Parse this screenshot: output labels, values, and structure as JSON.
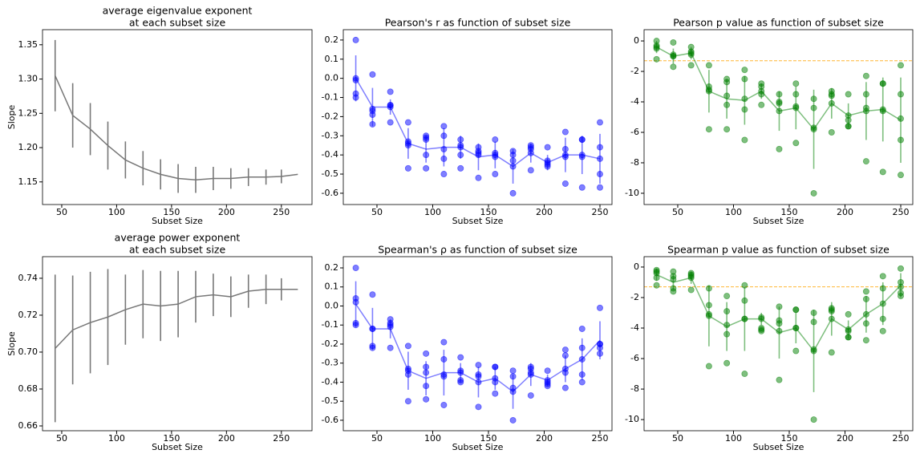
{
  "chart_data": [
    {
      "type": "errorbar",
      "title": [
        "average eigenvalue exponent",
        "at each subset size"
      ],
      "xlabel": "Subset Size",
      "ylabel": "Slope",
      "x": [
        44,
        60,
        76,
        92,
        108,
        124,
        140,
        156,
        172,
        188,
        204,
        220,
        236,
        250,
        265
      ],
      "values": [
        1.305,
        1.247,
        1.227,
        1.203,
        1.182,
        1.17,
        1.161,
        1.155,
        1.153,
        1.155,
        1.155,
        1.157,
        1.157,
        1.158,
        1.161
      ],
      "errors": [
        0.052,
        0.047,
        0.038,
        0.035,
        0.027,
        0.025,
        0.022,
        0.021,
        0.019,
        0.017,
        0.015,
        0.013,
        0.011,
        0.01,
        null
      ],
      "color": "#777777",
      "xlim": [
        32.5,
        277.9
      ],
      "ylim": [
        1.117,
        1.372
      ],
      "xticks": [
        50,
        100,
        150,
        200,
        250
      ],
      "yticks": [
        1.15,
        {
          "value": 1.2,
          "label": "1.20"
        },
        1.25,
        {
          "value": 1.3,
          "label": "1.30"
        },
        1.35
      ]
    },
    {
      "type": "errorbar-scatter",
      "title": [
        "Pearson's r as function of subset size"
      ],
      "xlabel": "Subset Size",
      "x": [
        31,
        46,
        62,
        78,
        94,
        110,
        125,
        141,
        156,
        172,
        188,
        203,
        219,
        234,
        250
      ],
      "values": [
        0.0,
        -0.15,
        -0.15,
        -0.34,
        -0.37,
        -0.36,
        -0.36,
        -0.41,
        -0.4,
        -0.46,
        -0.39,
        -0.44,
        -0.4,
        -0.4,
        -0.42
      ],
      "errors": [
        0.12,
        0.1,
        0.04,
        0.08,
        0.07,
        0.1,
        0.06,
        0.07,
        0.07,
        0.09,
        0.05,
        0.04,
        0.09,
        0.1,
        0.13
      ],
      "samples": [
        [
          0.2,
          -0.01,
          0.0,
          -0.08,
          -0.1
        ],
        [
          0.02,
          -0.16,
          -0.17,
          -0.24,
          -0.19
        ],
        [
          -0.07,
          -0.14,
          -0.15,
          -0.23,
          -0.14
        ],
        [
          -0.23,
          -0.33,
          -0.35,
          -0.47,
          -0.34
        ],
        [
          -0.3,
          -0.32,
          -0.4,
          -0.47,
          -0.31
        ],
        [
          -0.25,
          -0.3,
          -0.42,
          -0.5,
          -0.37
        ],
        [
          -0.32,
          -0.36,
          -0.4,
          -0.47,
          -0.35
        ],
        [
          -0.36,
          -0.39,
          -0.4,
          -0.52,
          -0.38
        ],
        [
          -0.32,
          -0.39,
          -0.41,
          -0.5,
          -0.4
        ],
        [
          -0.38,
          -0.4,
          -0.46,
          -0.6,
          -0.43
        ],
        [
          -0.35,
          -0.36,
          -0.39,
          -0.48,
          -0.37
        ],
        [
          -0.36,
          -0.43,
          -0.45,
          -0.46,
          -0.44
        ],
        [
          -0.28,
          -0.37,
          -0.41,
          -0.55,
          -0.4
        ],
        [
          -0.32,
          -0.32,
          -0.41,
          -0.57,
          -0.4
        ],
        [
          -0.23,
          -0.36,
          -0.5,
          -0.57,
          -0.42
        ]
      ],
      "color": "#0000ff",
      "xlim": [
        19.8,
        260.8
      ],
      "ylim": [
        -0.659,
        0.254
      ],
      "xticks": [
        50,
        100,
        150,
        200,
        250
      ],
      "yticks": [
        -0.6,
        -0.5,
        -0.4,
        -0.3,
        -0.2,
        -0.1,
        {
          "value": 0,
          "label": "0.0"
        },
        0.1,
        0.2
      ]
    },
    {
      "type": "errorbar-scatter",
      "title": [
        "Pearson p value as function of subset size"
      ],
      "xlabel": "Subset Size",
      "x": [
        31,
        46,
        62,
        78,
        94,
        110,
        125,
        141,
        156,
        172,
        188,
        203,
        219,
        234,
        250
      ],
      "values": [
        -0.4,
        -1.0,
        -0.8,
        -3.3,
        -3.8,
        -3.9,
        -3.3,
        -4.6,
        -4.4,
        -5.8,
        -4.1,
        -4.9,
        -4.6,
        -4.5,
        -5.2
      ],
      "errors": [
        0.4,
        0.5,
        0.4,
        1.4,
        1.3,
        1.6,
        0.5,
        1.3,
        1.4,
        2.6,
        1.0,
        0.8,
        1.9,
        2.1,
        2.8
      ],
      "samples": [
        [
          0,
          -0.3,
          -0.4,
          -1.2,
          -0.5
        ],
        [
          -0.1,
          -0.9,
          -1.0,
          -1.7,
          -1.0
        ],
        [
          -0.4,
          -0.7,
          -0.9,
          -1.6,
          -0.8
        ],
        [
          -1.6,
          -3.0,
          -3.3,
          -5.8,
          -3.2
        ],
        [
          -2.5,
          -2.7,
          -4.2,
          -5.8,
          -3.6
        ],
        [
          -1.9,
          -2.5,
          -4.5,
          -6.5,
          -3.8
        ],
        [
          -2.8,
          -3.0,
          -4.2,
          -3.5,
          -3.3
        ],
        [
          -3.5,
          -4.0,
          -4.1,
          -7.1,
          -4.6
        ],
        [
          -2.8,
          -3.5,
          -4.3,
          -6.7,
          -4.4
        ],
        [
          -3.8,
          -4.4,
          -5.7,
          -10.0,
          -5.8
        ],
        [
          -3.3,
          -3.5,
          -3.6,
          -6.0,
          -4.1
        ],
        [
          -3.5,
          -5.2,
          -5.6,
          -5.6,
          -4.9
        ],
        [
          -2.3,
          -3.5,
          -4.4,
          -7.9,
          -4.6
        ],
        [
          -2.8,
          -2.8,
          -4.5,
          -8.6,
          -4.6
        ],
        [
          -1.6,
          -3.5,
          -6.5,
          -8.8,
          -5.1
        ]
      ],
      "color": "#008000",
      "reference_line": -1.3,
      "reference_color": "#ffa500",
      "xlim": [
        19.8,
        260.8
      ],
      "ylim": [
        -10.74,
        0.74
      ],
      "xticks": [
        50,
        100,
        150,
        200,
        250
      ],
      "yticks": [
        -10,
        -8,
        -6,
        -4,
        -2,
        0
      ]
    },
    {
      "type": "errorbar",
      "title": [
        "average power exponent",
        "at each subset size"
      ],
      "xlabel": "Subset Size",
      "ylabel": "Slope",
      "x": [
        44,
        60,
        76,
        92,
        108,
        124,
        140,
        156,
        172,
        188,
        204,
        220,
        236,
        250,
        265
      ],
      "values": [
        0.702,
        0.712,
        0.716,
        0.719,
        0.723,
        0.726,
        0.725,
        0.726,
        0.73,
        0.731,
        0.73,
        0.733,
        0.734,
        0.734,
        0.734
      ],
      "errors": [
        0.04,
        0.0295,
        0.0275,
        0.026,
        0.019,
        0.0185,
        0.019,
        0.018,
        0.014,
        0.0115,
        0.011,
        0.009,
        0.008,
        0.006,
        null
      ],
      "color": "#777777",
      "xlim": [
        32.5,
        277.9
      ],
      "ylim": [
        0.6574,
        0.7517
      ],
      "xticks": [
        50,
        100,
        150,
        200,
        250
      ],
      "yticks": [
        0.66,
        0.68,
        {
          "value": 0.7,
          "label": "0.70"
        },
        0.72,
        0.74
      ]
    },
    {
      "type": "errorbar-scatter",
      "title": [
        "Spearman's ρ as function of subset size"
      ],
      "xlabel": "Subset Size",
      "x": [
        31,
        46,
        62,
        78,
        94,
        110,
        125,
        141,
        156,
        172,
        188,
        203,
        219,
        234,
        250
      ],
      "values": [
        0.01,
        -0.12,
        -0.12,
        -0.34,
        -0.38,
        -0.35,
        -0.35,
        -0.4,
        -0.38,
        -0.45,
        -0.36,
        -0.39,
        -0.33,
        -0.28,
        -0.18
      ],
      "errors": [
        0.12,
        0.11,
        0.05,
        0.1,
        0.09,
        0.12,
        0.05,
        0.08,
        0.06,
        0.09,
        0.06,
        0.03,
        0.07,
        0.11,
        0.1
      ],
      "samples": [
        [
          0.2,
          0.04,
          -0.09,
          -0.1,
          0.02
        ],
        [
          0.06,
          -0.12,
          -0.21,
          -0.22,
          -0.12
        ],
        [
          -0.07,
          -0.1,
          -0.11,
          -0.22,
          -0.09
        ],
        [
          -0.21,
          -0.33,
          -0.34,
          -0.5,
          -0.36
        ],
        [
          -0.25,
          -0.32,
          -0.42,
          -0.49,
          -0.35
        ],
        [
          -0.19,
          -0.28,
          -0.37,
          -0.52,
          -0.36
        ],
        [
          -0.27,
          -0.34,
          -0.39,
          -0.4,
          -0.35
        ],
        [
          -0.31,
          -0.36,
          -0.37,
          -0.53,
          -0.4
        ],
        [
          -0.32,
          -0.32,
          -0.38,
          -0.46,
          -0.4
        ],
        [
          -0.34,
          -0.37,
          -0.43,
          -0.6,
          -0.45
        ],
        [
          -0.32,
          -0.33,
          -0.36,
          -0.47,
          -0.35
        ],
        [
          -0.34,
          -0.4,
          -0.41,
          -0.42,
          -0.39
        ],
        [
          -0.23,
          -0.26,
          -0.35,
          -0.43,
          -0.33
        ],
        [
          -0.12,
          -0.22,
          -0.36,
          -0.4,
          -0.28
        ],
        [
          -0.01,
          -0.2,
          -0.22,
          -0.25,
          -0.2
        ]
      ],
      "color": "#0000ff",
      "xlim": [
        19.8,
        260.8
      ],
      "ylim": [
        -0.655,
        0.259
      ],
      "xticks": [
        50,
        100,
        150,
        200,
        250
      ],
      "yticks": [
        -0.6,
        -0.5,
        -0.4,
        -0.3,
        -0.2,
        -0.1,
        {
          "value": 0,
          "label": "0.0"
        },
        0.1,
        0.2
      ]
    },
    {
      "type": "errorbar-scatter",
      "title": [
        "Spearman p value as function of subset size"
      ],
      "xlabel": "Subset Size",
      "x": [
        31,
        46,
        62,
        78,
        94,
        110,
        125,
        141,
        156,
        172,
        188,
        203,
        219,
        234,
        250
      ],
      "values": [
        -0.5,
        -1.0,
        -0.7,
        -3.2,
        -3.9,
        -3.4,
        -3.4,
        -4.3,
        -4.0,
        -5.5,
        -3.4,
        -4.1,
        -3.1,
        -2.4,
        -1.2
      ],
      "errors": [
        0.4,
        0.5,
        0.4,
        2.0,
        1.6,
        2.1,
        0.4,
        1.7,
        1.0,
        2.7,
        1.1,
        0.6,
        1.2,
        1.4,
        0.8
      ],
      "samples": [
        [
          -0.2,
          -0.4,
          -0.7,
          -1.2,
          -0.3
        ],
        [
          -0.3,
          -0.6,
          -1.4,
          -1.6,
          -0.8
        ],
        [
          -0.4,
          -0.5,
          -0.6,
          -1.5,
          -0.7
        ],
        [
          -1.4,
          -2.5,
          -3.2,
          -6.5,
          -3.1
        ],
        [
          -1.9,
          -2.9,
          -4.4,
          -6.3,
          -3.8
        ],
        [
          -1.2,
          -2.2,
          -3.4,
          -7.0,
          -3.4
        ],
        [
          -3.3,
          -4.0,
          -4.2,
          -4.1,
          -3.4
        ],
        [
          -2.6,
          -3.5,
          -3.7,
          -7.4,
          -4.2
        ],
        [
          -2.8,
          -2.8,
          -4.0,
          -5.5,
          -4.0
        ],
        [
          -3.0,
          -3.6,
          -5.4,
          -10.0,
          -5.5
        ],
        [
          -2.7,
          -2.8,
          -2.9,
          -5.6,
          -3.4
        ],
        [
          -3.1,
          -4.2,
          -4.6,
          -4.6,
          -4.1
        ],
        [
          -1.6,
          -2.1,
          -3.7,
          -4.8,
          -3.1
        ],
        [
          -0.6,
          -1.4,
          -3.4,
          -4.2,
          -2.4
        ],
        [
          -0.1,
          -1.3,
          -1.7,
          -1.9,
          -1.0
        ]
      ],
      "color": "#008000",
      "reference_line": -1.3,
      "reference_color": "#ffa500",
      "xlim": [
        19.8,
        260.8
      ],
      "ylim": [
        -10.73,
        0.68
      ],
      "xticks": [
        50,
        100,
        150,
        200,
        250
      ],
      "yticks": [
        -10,
        -8,
        -6,
        -4,
        -2,
        0
      ]
    }
  ]
}
